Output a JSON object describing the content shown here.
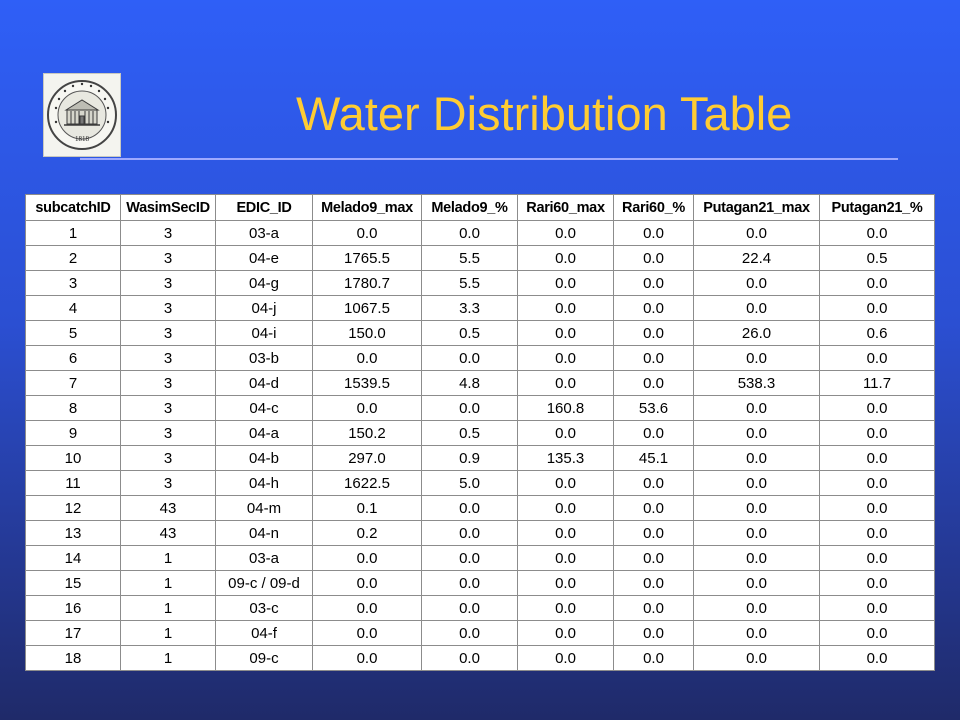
{
  "slide": {
    "title": "Water Distribution Table",
    "logo_text": "UNIVERSITÄT HOHENHEIM 1818"
  },
  "table": {
    "columns": [
      "subcatchID",
      "WasimSecID",
      "EDIC_ID",
      "Melado9_max",
      "Melado9_%",
      "Rari60_max",
      "Rari60_%",
      "Putagan21_max",
      "Putagan21_%"
    ],
    "rows": [
      [
        "1",
        "3",
        "03-a",
        "0.0",
        "0.0",
        "0.0",
        "0.0",
        "0.0",
        "0.0"
      ],
      [
        "2",
        "3",
        "04-e",
        "1765.5",
        "5.5",
        "0.0",
        "0.0",
        "22.4",
        "0.5"
      ],
      [
        "3",
        "3",
        "04-g",
        "1780.7",
        "5.5",
        "0.0",
        "0.0",
        "0.0",
        "0.0"
      ],
      [
        "4",
        "3",
        "04-j",
        "1067.5",
        "3.3",
        "0.0",
        "0.0",
        "0.0",
        "0.0"
      ],
      [
        "5",
        "3",
        "04-i",
        "150.0",
        "0.5",
        "0.0",
        "0.0",
        "26.0",
        "0.6"
      ],
      [
        "6",
        "3",
        "03-b",
        "0.0",
        "0.0",
        "0.0",
        "0.0",
        "0.0",
        "0.0"
      ],
      [
        "7",
        "3",
        "04-d",
        "1539.5",
        "4.8",
        "0.0",
        "0.0",
        "538.3",
        "11.7"
      ],
      [
        "8",
        "3",
        "04-c",
        "0.0",
        "0.0",
        "160.8",
        "53.6",
        "0.0",
        "0.0"
      ],
      [
        "9",
        "3",
        "04-a",
        "150.2",
        "0.5",
        "0.0",
        "0.0",
        "0.0",
        "0.0"
      ],
      [
        "10",
        "3",
        "04-b",
        "297.0",
        "0.9",
        "135.3",
        "45.1",
        "0.0",
        "0.0"
      ],
      [
        "11",
        "3",
        "04-h",
        "1622.5",
        "5.0",
        "0.0",
        "0.0",
        "0.0",
        "0.0"
      ],
      [
        "12",
        "43",
        "04-m",
        "0.1",
        "0.0",
        "0.0",
        "0.0",
        "0.0",
        "0.0"
      ],
      [
        "13",
        "43",
        "04-n",
        "0.2",
        "0.0",
        "0.0",
        "0.0",
        "0.0",
        "0.0"
      ],
      [
        "14",
        "1",
        "03-a",
        "0.0",
        "0.0",
        "0.0",
        "0.0",
        "0.0",
        "0.0"
      ],
      [
        "15",
        "1",
        "09-c / 09-d",
        "0.0",
        "0.0",
        "0.0",
        "0.0",
        "0.0",
        "0.0"
      ],
      [
        "16",
        "1",
        "03-c",
        "0.0",
        "0.0",
        "0.0",
        "0.0",
        "0.0",
        "0.0"
      ],
      [
        "17",
        "1",
        "04-f",
        "0.0",
        "0.0",
        "0.0",
        "0.0",
        "0.0",
        "0.0"
      ],
      [
        "18",
        "1",
        "09-c",
        "0.0",
        "0.0",
        "0.0",
        "0.0",
        "0.0",
        "0.0"
      ]
    ]
  }
}
